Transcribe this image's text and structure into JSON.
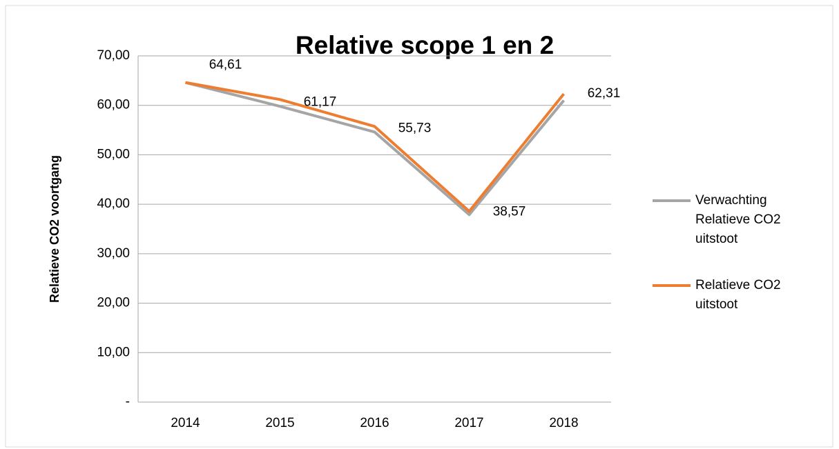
{
  "chart_data": {
    "type": "line",
    "title": "Relative scope 1 en 2",
    "y_label": "Relatieve CO2 voortgang",
    "categories": [
      "2014",
      "2015",
      "2016",
      "2017",
      "2018"
    ],
    "series": [
      {
        "name": "Verwachting Relatieve CO2 uitstoot",
        "color": "#a5a5a5",
        "values": [
          64.61,
          59.8,
          54.6,
          37.9,
          61.0
        ]
      },
      {
        "name": "Relatieve CO2 uitstoot",
        "color": "#ed7d31",
        "values": [
          64.61,
          61.17,
          55.73,
          38.57,
          62.31
        ],
        "value_labels": [
          "64,61",
          "61,17",
          "55,73",
          "38,57",
          "62,31"
        ]
      }
    ],
    "ylim": [
      0,
      70
    ],
    "yticks": [
      {
        "value": 0,
        "label": "-"
      },
      {
        "value": 10,
        "label": "10,00"
      },
      {
        "value": 20,
        "label": "20,00"
      },
      {
        "value": 30,
        "label": "30,00"
      },
      {
        "value": 40,
        "label": "40,00"
      },
      {
        "value": 50,
        "label": "50,00"
      },
      {
        "value": 60,
        "label": "60,00"
      },
      {
        "value": 70,
        "label": "70,00"
      }
    ],
    "grid": true,
    "legend": "right"
  }
}
